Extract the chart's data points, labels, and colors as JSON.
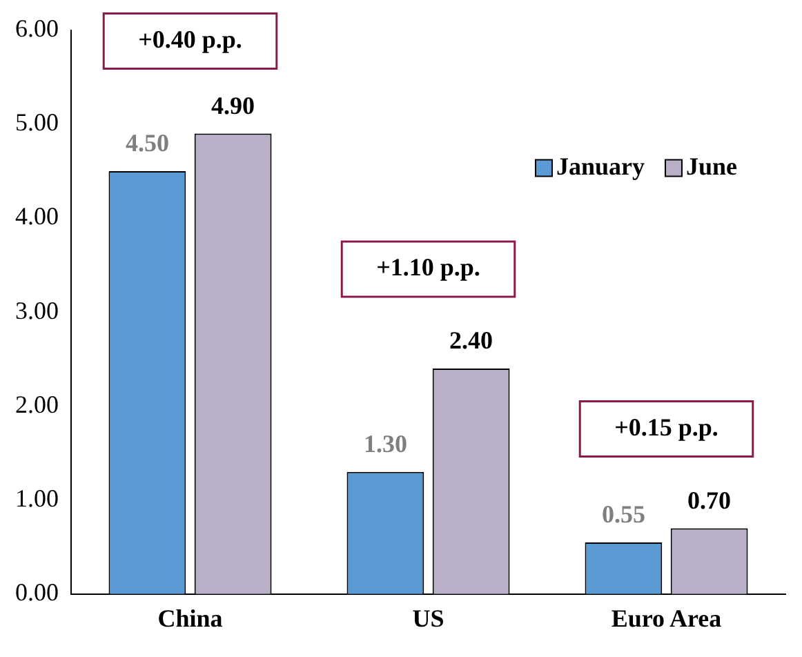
{
  "chart_data": {
    "type": "bar",
    "categories": [
      "China",
      "US",
      "Euro Area"
    ],
    "series": [
      {
        "name": "January",
        "color": "#5b9bd5",
        "values": [
          4.5,
          1.3,
          0.55
        ],
        "value_labels": [
          "4.50",
          "1.30",
          "0.55"
        ]
      },
      {
        "name": "June",
        "color": "#b9b0c8",
        "values": [
          4.9,
          2.4,
          0.7
        ],
        "value_labels": [
          "4.90",
          "2.40",
          "0.70"
        ]
      }
    ],
    "ylim": [
      0,
      6
    ],
    "yticks": [
      {
        "value": 0,
        "label": "0.00"
      },
      {
        "value": 1,
        "label": "1.00"
      },
      {
        "value": 2,
        "label": "2.00"
      },
      {
        "value": 3,
        "label": "3.00"
      },
      {
        "value": 4,
        "label": "4.00"
      },
      {
        "value": 5,
        "label": "5.00"
      },
      {
        "value": 6,
        "label": "6.00"
      }
    ],
    "annotations": [
      "+0.40 p.p.",
      "+1.10 p.p.",
      "+0.15 p.p."
    ],
    "legend": "top right",
    "grid": false
  }
}
